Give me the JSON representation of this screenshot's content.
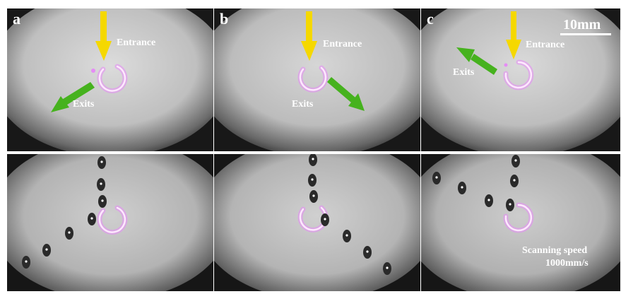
{
  "panels": [
    {
      "label": "a",
      "entrance": "Entrance",
      "exits": "Exits"
    },
    {
      "label": "b",
      "entrance": "Entrance",
      "exits": "Exits"
    },
    {
      "label": "c",
      "entrance": "Entrance",
      "exits": "Exits"
    }
  ],
  "scale_bar": {
    "label": "10mm"
  },
  "scanning": {
    "line1": "Scanning speed",
    "line2": "1000mm/s"
  },
  "colors": {
    "entrance_arrow": "#f5d800",
    "exit_arrow": "#46b21e",
    "laser_ring": "#e58cf5",
    "background_glow": "#d4d4d4"
  },
  "icons": [
    "entrance-arrow-icon",
    "exit-arrow-icon",
    "laser-ring-icon",
    "droplet-icon"
  ]
}
